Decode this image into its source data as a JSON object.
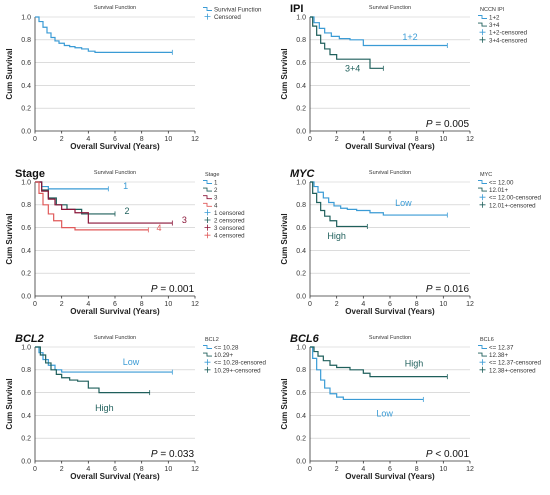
{
  "chart_data": [
    {
      "type": "line",
      "panel_title": "",
      "title": "Survival Function",
      "xlabel": "Overall Survival (Years)",
      "ylabel": "Cum Survival",
      "xlim": [
        0,
        12
      ],
      "ylim": [
        0,
        1
      ],
      "xticks": [
        "0",
        "2",
        "4",
        "6",
        "8",
        "10",
        "12"
      ],
      "yticks": [
        "0.0",
        "0.2",
        "0.4",
        "0.6",
        "0.8",
        "1.0"
      ],
      "legend_title": "",
      "legend": [
        {
          "label": "Survival Function",
          "kind": "line",
          "color": "#3a9bd5"
        },
        {
          "label": "Censored",
          "kind": "plus",
          "color": "#3a9bd5"
        }
      ],
      "series": [
        {
          "color": "#3a9bd5",
          "x": [
            0,
            0.3,
            0.6,
            0.9,
            1.2,
            1.5,
            1.8,
            2.2,
            2.6,
            3.0,
            3.5,
            4.0,
            4.5,
            10.3
          ],
          "y": [
            1.0,
            0.96,
            0.91,
            0.86,
            0.82,
            0.79,
            0.77,
            0.75,
            0.74,
            0.73,
            0.72,
            0.7,
            0.69,
            0.69
          ]
        }
      ],
      "curve_labels": [],
      "pvalue": ""
    },
    {
      "type": "line",
      "panel_title": "IPI",
      "title": "Survival Function",
      "xlabel": "Overall Survival (Years)",
      "ylabel": "Cum Survival",
      "xlim": [
        0,
        12
      ],
      "ylim": [
        0,
        1
      ],
      "xticks": [
        "0",
        "2",
        "4",
        "6",
        "8",
        "10",
        "12"
      ],
      "yticks": [
        "0.0",
        "0.2",
        "0.4",
        "0.6",
        "0.8",
        "1.0"
      ],
      "legend_title": "NCCN IPI",
      "legend": [
        {
          "label": "1+2",
          "kind": "line",
          "color": "#3a9bd5"
        },
        {
          "label": "3+4",
          "kind": "line",
          "color": "#1f5f5b"
        },
        {
          "label": "1+2-censored",
          "kind": "plus",
          "color": "#3a9bd5"
        },
        {
          "label": "3+4-censored",
          "kind": "plus",
          "color": "#1f5f5b"
        }
      ],
      "series": [
        {
          "name": "1+2",
          "color": "#3a9bd5",
          "x": [
            0,
            0.3,
            0.7,
            1.1,
            1.6,
            2.2,
            3.0,
            4.0,
            10.3
          ],
          "y": [
            1.0,
            0.95,
            0.9,
            0.86,
            0.83,
            0.81,
            0.8,
            0.75,
            0.75
          ]
        },
        {
          "name": "3+4",
          "color": "#1f5f5b",
          "x": [
            0,
            0.2,
            0.5,
            0.8,
            1.1,
            1.5,
            2.0,
            4.5,
            5.5
          ],
          "y": [
            1.0,
            0.92,
            0.84,
            0.77,
            0.72,
            0.67,
            0.63,
            0.55,
            0.55
          ]
        }
      ],
      "curve_labels": [
        {
          "text": "1+2",
          "x": 7.5,
          "y": 0.8,
          "color": "#3a9bd5"
        },
        {
          "text": "3+4",
          "x": 3.2,
          "y": 0.52,
          "color": "#1f5f5b"
        }
      ],
      "pvalue": "P = 0.005"
    },
    {
      "type": "line",
      "panel_title": "Stage",
      "title": "Survival Function",
      "xlabel": "Overall Survival (Years)",
      "ylabel": "Cum Survival",
      "xlim": [
        0,
        12
      ],
      "ylim": [
        0,
        1
      ],
      "xticks": [
        "0",
        "2",
        "4",
        "6",
        "8",
        "10",
        "12"
      ],
      "yticks": [
        "0.0",
        "0.2",
        "0.4",
        "0.6",
        "0.8",
        "1.0"
      ],
      "legend_title": "Stage",
      "legend": [
        {
          "label": "1",
          "kind": "line",
          "color": "#3a9bd5"
        },
        {
          "label": "2",
          "kind": "line",
          "color": "#1f5f5b"
        },
        {
          "label": "3",
          "kind": "line",
          "color": "#8a1538"
        },
        {
          "label": "4",
          "kind": "line",
          "color": "#e05a5a"
        },
        {
          "label": "1    censored",
          "kind": "plus",
          "color": "#3a9bd5"
        },
        {
          "label": "2    censored",
          "kind": "plus",
          "color": "#1f5f5b"
        },
        {
          "label": "3    censored",
          "kind": "plus",
          "color": "#8a1538"
        },
        {
          "label": "4    censored",
          "kind": "plus",
          "color": "#e05a5a"
        }
      ],
      "series": [
        {
          "name": "1",
          "color": "#3a9bd5",
          "x": [
            0,
            0.5,
            1.0,
            5.5
          ],
          "y": [
            1.0,
            0.96,
            0.94,
            0.94
          ]
        },
        {
          "name": "2",
          "color": "#1f5f5b",
          "x": [
            0,
            0.5,
            1.0,
            1.6,
            2.4,
            3.5,
            6.0
          ],
          "y": [
            1.0,
            0.93,
            0.86,
            0.8,
            0.76,
            0.72,
            0.72
          ]
        },
        {
          "name": "3",
          "color": "#8a1538",
          "x": [
            0,
            0.5,
            1.0,
            1.5,
            2.0,
            3.0,
            4.0,
            10.3
          ],
          "y": [
            1.0,
            0.92,
            0.85,
            0.8,
            0.76,
            0.73,
            0.64,
            0.64
          ]
        },
        {
          "name": "4",
          "color": "#e05a5a",
          "x": [
            0,
            0.3,
            0.6,
            1.0,
            1.4,
            2.0,
            3.0,
            8.5
          ],
          "y": [
            1.0,
            0.9,
            0.8,
            0.72,
            0.66,
            0.6,
            0.58,
            0.58
          ]
        }
      ],
      "curve_labels": [
        {
          "text": "1",
          "x": 6.8,
          "y": 0.94,
          "color": "#3a9bd5"
        },
        {
          "text": "2",
          "x": 6.9,
          "y": 0.72,
          "color": "#1f5f5b"
        },
        {
          "text": "3",
          "x": 11.2,
          "y": 0.64,
          "color": "#8a1538"
        },
        {
          "text": "4",
          "x": 9.3,
          "y": 0.57,
          "color": "#e05a5a"
        }
      ],
      "pvalue": "P = 0.001"
    },
    {
      "type": "line",
      "panel_title": "MYC",
      "title": "Survival Function",
      "xlabel": "Overall Survival (Years)",
      "ylabel": "Cum Survival",
      "xlim": [
        0,
        12
      ],
      "ylim": [
        0,
        1
      ],
      "xticks": [
        "0",
        "2",
        "4",
        "6",
        "8",
        "10",
        "12"
      ],
      "yticks": [
        "0.0",
        "0.2",
        "0.4",
        "0.6",
        "0.8",
        "1.0"
      ],
      "legend_title": "MYC",
      "legend": [
        {
          "label": "<= 12.00",
          "kind": "line",
          "color": "#3a9bd5"
        },
        {
          "label": "12.01+",
          "kind": "line",
          "color": "#1f5f5b"
        },
        {
          "label": "<= 12.00-censored",
          "kind": "plus",
          "color": "#3a9bd5"
        },
        {
          "label": "12.01+-censored",
          "kind": "plus",
          "color": "#1f5f5b"
        }
      ],
      "series": [
        {
          "name": "<= 12.00",
          "color": "#3a9bd5",
          "x": [
            0,
            0.3,
            0.6,
            1.0,
            1.4,
            1.8,
            2.3,
            2.8,
            3.5,
            4.5,
            5.5,
            10.3
          ],
          "y": [
            1.0,
            0.96,
            0.91,
            0.86,
            0.82,
            0.79,
            0.77,
            0.76,
            0.75,
            0.73,
            0.71,
            0.71
          ]
        },
        {
          "name": "12.01+",
          "color": "#1f5f5b",
          "x": [
            0,
            0.2,
            0.5,
            0.8,
            1.1,
            1.5,
            2.0,
            4.3
          ],
          "y": [
            1.0,
            0.9,
            0.82,
            0.75,
            0.7,
            0.66,
            0.61,
            0.61
          ]
        }
      ],
      "curve_labels": [
        {
          "text": "Low",
          "x": 7.0,
          "y": 0.79,
          "color": "#3a9bd5"
        },
        {
          "text": "High",
          "x": 2.0,
          "y": 0.5,
          "color": "#1f5f5b"
        }
      ],
      "pvalue": "P = 0.016"
    },
    {
      "type": "line",
      "panel_title": "BCL2",
      "title": "Survival Function",
      "xlabel": "Overall Survival (Years)",
      "ylabel": "Cum Survival",
      "xlim": [
        0,
        12
      ],
      "ylim": [
        0,
        1
      ],
      "xticks": [
        "0",
        "2",
        "4",
        "6",
        "8",
        "10",
        "12"
      ],
      "yticks": [
        "0.0",
        "0.2",
        "0.4",
        "0.6",
        "0.8",
        "1.0"
      ],
      "legend_title": "BCL2",
      "legend": [
        {
          "label": "<= 10.28",
          "kind": "line",
          "color": "#3a9bd5"
        },
        {
          "label": "10.29+",
          "kind": "line",
          "color": "#1f5f5b"
        },
        {
          "label": "<= 10.28-censored",
          "kind": "plus",
          "color": "#3a9bd5"
        },
        {
          "label": "10.29+-censored",
          "kind": "plus",
          "color": "#1f5f5b"
        }
      ],
      "series": [
        {
          "name": "<= 10.28",
          "color": "#3a9bd5",
          "x": [
            0,
            0.3,
            0.6,
            1.0,
            1.5,
            2.0,
            10.3
          ],
          "y": [
            1.0,
            0.95,
            0.89,
            0.84,
            0.8,
            0.78,
            0.78
          ]
        },
        {
          "name": "10.29+",
          "color": "#1f5f5b",
          "x": [
            0,
            0.4,
            0.8,
            1.2,
            1.6,
            2.0,
            2.6,
            3.2,
            4.0,
            4.8,
            8.6
          ],
          "y": [
            1.0,
            0.93,
            0.86,
            0.8,
            0.76,
            0.73,
            0.71,
            0.7,
            0.64,
            0.6,
            0.6
          ]
        }
      ],
      "curve_labels": [
        {
          "text": "Low",
          "x": 7.2,
          "y": 0.84,
          "color": "#3a9bd5"
        },
        {
          "text": "High",
          "x": 5.2,
          "y": 0.44,
          "color": "#1f5f5b"
        }
      ],
      "pvalue": "P = 0.033"
    },
    {
      "type": "line",
      "panel_title": "BCL6",
      "title": "Survival Function",
      "xlabel": "Overall Survival (Years)",
      "ylabel": "Cum Survival",
      "xlim": [
        0,
        12
      ],
      "ylim": [
        0,
        1
      ],
      "xticks": [
        "0",
        "2",
        "4",
        "6",
        "8",
        "10",
        "12"
      ],
      "yticks": [
        "0.0",
        "0.2",
        "0.4",
        "0.6",
        "0.8",
        "1.0"
      ],
      "legend_title": "BCL6",
      "legend": [
        {
          "label": "<= 12.37",
          "kind": "line",
          "color": "#3a9bd5"
        },
        {
          "label": "12.38+",
          "kind": "line",
          "color": "#1f5f5b"
        },
        {
          "label": "<= 12.37-censored",
          "kind": "plus",
          "color": "#3a9bd5"
        },
        {
          "label": "12.38+-censored",
          "kind": "plus",
          "color": "#1f5f5b"
        }
      ],
      "series": [
        {
          "name": "<= 12.37",
          "color": "#3a9bd5",
          "x": [
            0,
            0.2,
            0.5,
            0.8,
            1.1,
            1.5,
            2.0,
            2.5,
            8.5
          ],
          "y": [
            1.0,
            0.9,
            0.8,
            0.71,
            0.64,
            0.59,
            0.56,
            0.54,
            0.54
          ]
        },
        {
          "name": "12.38+",
          "color": "#1f5f5b",
          "x": [
            0,
            0.3,
            0.6,
            1.0,
            1.5,
            2.0,
            3.0,
            4.0,
            4.5,
            10.3
          ],
          "y": [
            1.0,
            0.96,
            0.92,
            0.88,
            0.84,
            0.82,
            0.8,
            0.77,
            0.74,
            0.74
          ]
        }
      ],
      "curve_labels": [
        {
          "text": "High",
          "x": 7.8,
          "y": 0.83,
          "color": "#1f5f5b"
        },
        {
          "text": "Low",
          "x": 5.6,
          "y": 0.39,
          "color": "#3a9bd5"
        }
      ],
      "pvalue": "P < 0.001"
    }
  ]
}
